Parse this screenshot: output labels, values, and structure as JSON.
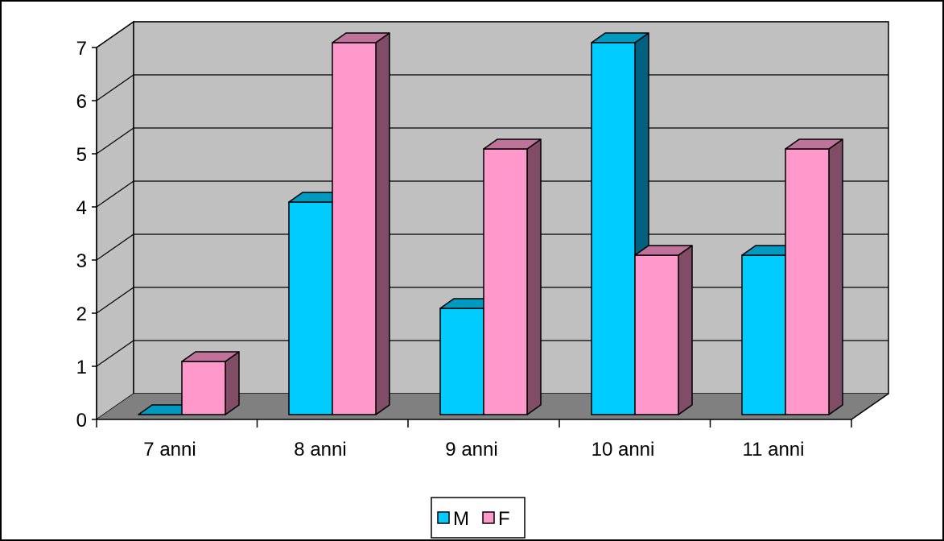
{
  "chart_data": {
    "type": "bar",
    "categories": [
      "7 anni",
      "8 anni",
      "9 anni",
      "10 anni",
      "11 anni"
    ],
    "series": [
      {
        "name": "M",
        "values": [
          0,
          4,
          2,
          7,
          3
        ],
        "color": "#00CCFF"
      },
      {
        "name": "F",
        "values": [
          1,
          7,
          5,
          3,
          5
        ],
        "color": "#FF99CC"
      }
    ],
    "ylim": [
      0,
      7
    ],
    "yticks": [
      "0",
      "1",
      "2",
      "3",
      "4",
      "5",
      "6",
      "7"
    ],
    "grid": true,
    "three_d": true,
    "legend_position": "bottom-center",
    "colors": {
      "back_wall": "#C0C0C0",
      "floor": "#808080",
      "M_side": "#006080",
      "M_top": "#0099C0",
      "F_side": "#804C66",
      "F_top": "#C0739A"
    }
  }
}
